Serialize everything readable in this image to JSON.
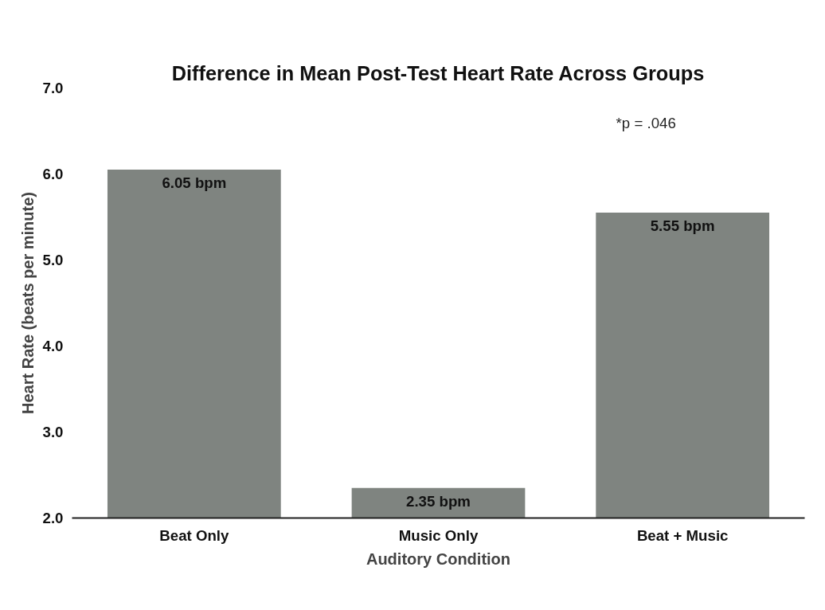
{
  "chart_data": {
    "type": "bar",
    "title": "Difference in Mean Post-Test Heart Rate Across Groups",
    "xlabel": "Auditory Condition",
    "ylabel": "Heart Rate (beats per minute)",
    "categories": [
      "Beat Only",
      "Music Only",
      "Beat + Music"
    ],
    "values": [
      6.05,
      2.35,
      5.55
    ],
    "color": "#7f8480",
    "value_labels": [
      "6.05 bpm",
      "2.35 bpm",
      "5.55 bpm"
    ],
    "ylim": [
      2,
      7
    ],
    "yticks": [
      {
        "value": 2,
        "label": "2.0"
      },
      {
        "value": 3,
        "label": "3.0"
      },
      {
        "value": 4,
        "label": "4.0"
      },
      {
        "value": 5,
        "label": "5.0"
      },
      {
        "value": 6,
        "label": "6.0"
      },
      {
        "value": 7,
        "label": "7.0"
      }
    ],
    "grid": false,
    "annotations": [
      "*p = .046"
    ]
  }
}
